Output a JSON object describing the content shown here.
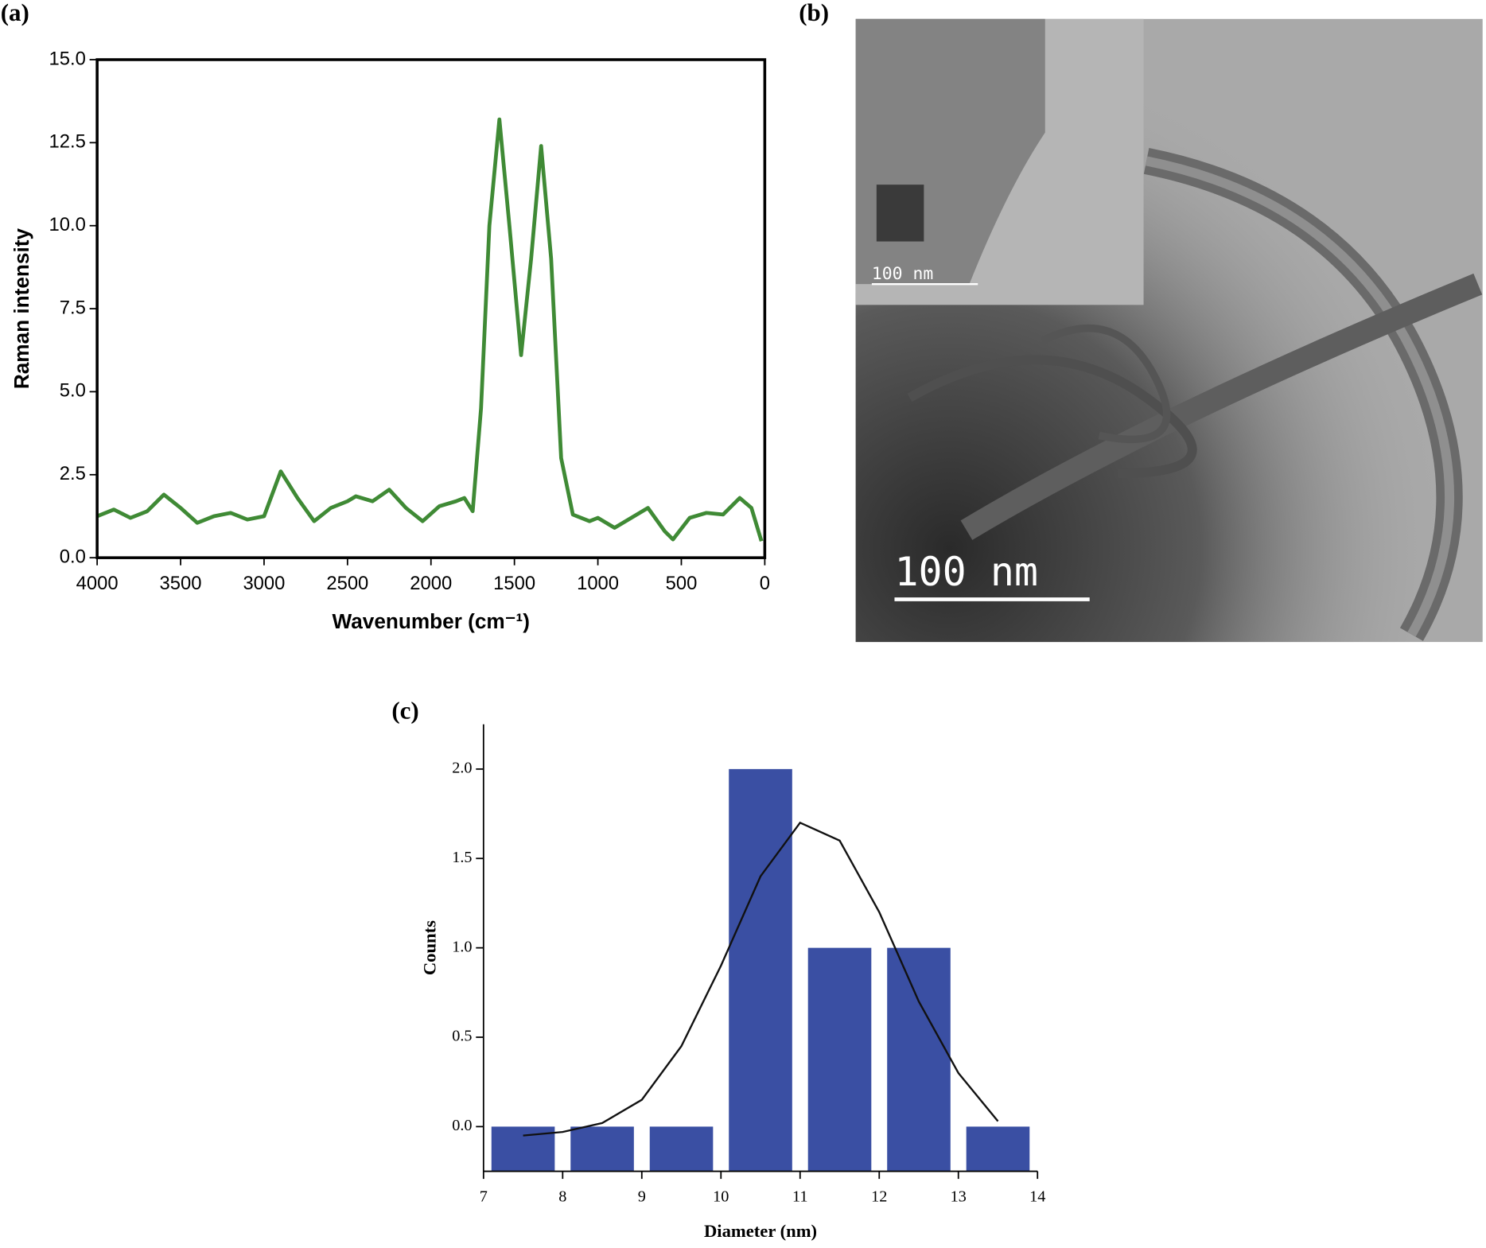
{
  "panel_labels": [
    "(a)",
    "(b)",
    "(c)"
  ],
  "image": {
    "scale_bars": [
      "100 nm",
      "100 nm"
    ]
  },
  "chart_data": [
    {
      "type": "line",
      "ylabel": "Raman intensity",
      "xlabel": "Wavenumber (cm⁻¹)",
      "xlim": [
        4000,
        0
      ],
      "xticks": [
        4000,
        3500,
        3000,
        2500,
        2000,
        1500,
        1000,
        500,
        0
      ],
      "ylim": [
        0,
        15
      ],
      "yticks": [
        {
          "value": 0,
          "label": "0.0"
        },
        {
          "value": 2.5,
          "label": "2.5"
        },
        {
          "value": 5,
          "label": "5.0"
        },
        {
          "value": 7.5,
          "label": "7.5"
        },
        {
          "value": 10,
          "label": "10.0"
        },
        {
          "value": 12.5,
          "label": "12.5"
        },
        {
          "value": 15,
          "label": "15.0"
        }
      ],
      "color": "#3f8a35",
      "x": [
        4000,
        3900,
        3800,
        3700,
        3600,
        3500,
        3400,
        3300,
        3200,
        3100,
        3000,
        2900,
        2800,
        2700,
        2600,
        2500,
        2450,
        2350,
        2250,
        2150,
        2050,
        1950,
        1850,
        1800,
        1750,
        1700,
        1650,
        1590,
        1530,
        1460,
        1400,
        1340,
        1280,
        1220,
        1150,
        1050,
        1000,
        900,
        800,
        700,
        600,
        550,
        450,
        350,
        250,
        150,
        80,
        20
      ],
      "values": [
        1.25,
        1.45,
        1.2,
        1.4,
        1.9,
        1.5,
        1.05,
        1.25,
        1.35,
        1.15,
        1.25,
        2.6,
        1.8,
        1.1,
        1.5,
        1.7,
        1.85,
        1.7,
        2.05,
        1.5,
        1.1,
        1.55,
        1.7,
        1.8,
        1.4,
        4.5,
        10,
        13.2,
        10,
        6.1,
        9,
        12.4,
        9,
        3,
        1.3,
        1.1,
        1.2,
        0.9,
        1.2,
        1.5,
        0.8,
        0.55,
        1.2,
        1.35,
        1.3,
        1.8,
        1.5,
        0.5
      ]
    },
    {
      "type": "bar",
      "ylabel": "Counts",
      "xlabel": "Diameter (nm)",
      "xlim": [
        7,
        14
      ],
      "xticks": [
        7,
        8,
        9,
        10,
        11,
        12,
        13,
        14
      ],
      "ylim": [
        -0.25,
        2.25
      ],
      "yticks": [
        {
          "value": 0,
          "label": "0.0"
        },
        {
          "value": 0.5,
          "label": "0.5"
        },
        {
          "value": 1,
          "label": "1.0"
        },
        {
          "value": 1.5,
          "label": "1.5"
        },
        {
          "value": 2,
          "label": "2.0"
        }
      ],
      "color": "#3a4fa3",
      "bar_width": 0.8,
      "x": [
        7.5,
        8.5,
        9.5,
        10.5,
        11.5,
        12.5,
        13.5
      ],
      "values": [
        0,
        0,
        0,
        2,
        1,
        1,
        0
      ],
      "fit": {
        "color": "#111111",
        "x": [
          7.5,
          8,
          8.5,
          9,
          9.5,
          10,
          10.5,
          11,
          11.5,
          12,
          12.5,
          13,
          13.5
        ],
        "values": [
          -0.05,
          -0.03,
          0.02,
          0.15,
          0.45,
          0.9,
          1.4,
          1.7,
          1.6,
          1.2,
          0.7,
          0.3,
          0.03
        ]
      }
    }
  ]
}
